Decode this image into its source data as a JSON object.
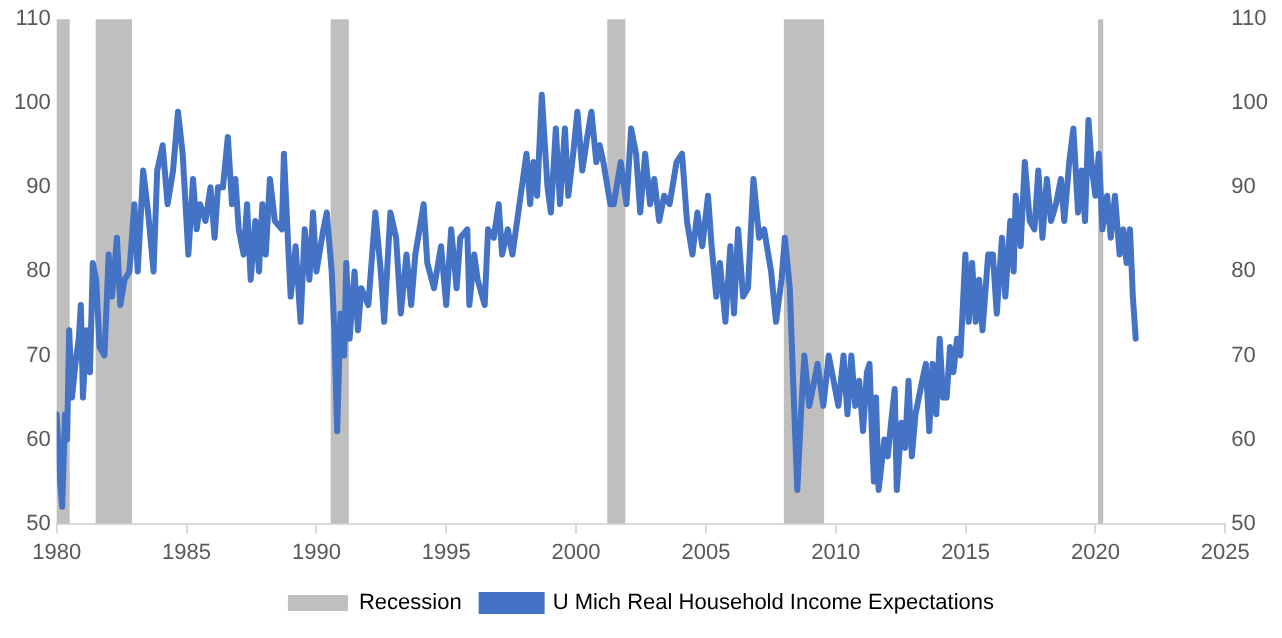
{
  "chart_data": {
    "type": "line",
    "legend": "bottom",
    "grid": false,
    "marker": "none",
    "line_style": "solid",
    "xlim": [
      1980,
      2025
    ],
    "xticks": [
      1980,
      1985,
      1990,
      1995,
      2000,
      2005,
      2010,
      2015,
      2020,
      2025
    ],
    "ylim": [
      50,
      110
    ],
    "yticks": [
      50,
      60,
      70,
      80,
      90,
      100,
      110
    ],
    "y2lim": [
      50,
      110
    ],
    "y2ticks": [
      50,
      60,
      70,
      80,
      90,
      100,
      110
    ],
    "bands": [
      {
        "axis": "x",
        "from": 1980.0,
        "to": 1980.5,
        "label": "Recession",
        "color": "#bfbfbf"
      },
      {
        "axis": "x",
        "from": 1981.5,
        "to": 1982.9,
        "color": "#bfbfbf"
      },
      {
        "axis": "x",
        "from": 1990.55,
        "to": 1991.25,
        "color": "#bfbfbf"
      },
      {
        "axis": "x",
        "from": 2001.2,
        "to": 2001.9,
        "color": "#bfbfbf"
      },
      {
        "axis": "x",
        "from": 2008.0,
        "to": 2009.55,
        "color": "#bfbfbf"
      },
      {
        "axis": "x",
        "from": 2020.1,
        "to": 2020.3,
        "color": "#bfbfbf"
      }
    ],
    "x": [
      1980.0,
      1980.13,
      1980.21,
      1980.32,
      1980.4,
      1980.48,
      1980.59,
      1980.72,
      1980.85,
      1980.93,
      1981.01,
      1981.15,
      1981.28,
      1981.39,
      1981.52,
      1981.65,
      1981.84,
      1982.0,
      1982.13,
      1982.32,
      1982.45,
      1982.61,
      1982.8,
      1982.99,
      1983.12,
      1983.33,
      1983.52,
      1983.73,
      1983.87,
      1984.08,
      1984.27,
      1984.48,
      1984.67,
      1984.85,
      1985.07,
      1985.25,
      1985.39,
      1985.52,
      1985.73,
      1985.92,
      1986.08,
      1986.21,
      1986.4,
      1986.59,
      1986.75,
      1986.88,
      1987.01,
      1987.2,
      1987.33,
      1987.47,
      1987.65,
      1987.79,
      1987.92,
      1988.05,
      1988.21,
      1988.4,
      1988.67,
      1988.75,
      1988.93,
      1989.01,
      1989.2,
      1989.39,
      1989.55,
      1989.73,
      1989.87,
      1990.0,
      1990.27,
      1990.4,
      1990.59,
      1990.69,
      1990.8,
      1990.93,
      1991.07,
      1991.15,
      1991.28,
      1991.47,
      1991.6,
      1991.73,
      1992.0,
      1992.27,
      1992.48,
      1992.61,
      1992.85,
      1993.07,
      1993.25,
      1993.47,
      1993.65,
      1993.81,
      1994.13,
      1994.27,
      1994.53,
      1994.8,
      1995.0,
      1995.19,
      1995.4,
      1995.54,
      1995.81,
      1995.89,
      1996.08,
      1996.21,
      1996.48,
      1996.61,
      1996.83,
      1997.02,
      1997.15,
      1997.37,
      1997.55,
      1997.82,
      1998.09,
      1998.23,
      1998.36,
      1998.5,
      1998.68,
      1998.9,
      1999.03,
      1999.22,
      1999.38,
      1999.57,
      1999.7,
      1999.89,
      2000.05,
      2000.24,
      2000.43,
      2000.59,
      2000.78,
      2000.91,
      2001.05,
      2001.32,
      2001.45,
      2001.72,
      2001.94,
      2002.12,
      2002.31,
      2002.47,
      2002.66,
      2002.85,
      2003.01,
      2003.2,
      2003.39,
      2003.6,
      2003.87,
      2004.08,
      2004.27,
      2004.48,
      2004.67,
      2004.86,
      2005.08,
      2005.22,
      2005.4,
      2005.54,
      2005.75,
      2005.94,
      2006.08,
      2006.24,
      2006.43,
      2006.62,
      2006.83,
      2007.05,
      2007.24,
      2007.51,
      2007.7,
      2007.91,
      2008.04,
      2008.23,
      2008.37,
      2008.52,
      2008.66,
      2008.79,
      2008.98,
      2009.11,
      2009.3,
      2009.52,
      2009.73,
      2010.1,
      2010.3,
      2010.45,
      2010.6,
      2010.75,
      2010.9,
      2011.05,
      2011.2,
      2011.3,
      2011.4,
      2011.47,
      2011.55,
      2011.65,
      2011.87,
      2012.0,
      2012.13,
      2012.27,
      2012.35,
      2012.53,
      2012.67,
      2012.8,
      2012.93,
      2013.07,
      2013.33,
      2013.47,
      2013.6,
      2013.73,
      2013.87,
      2014.0,
      2014.13,
      2014.27,
      2014.4,
      2014.53,
      2014.67,
      2014.8,
      2014.99,
      2015.12,
      2015.25,
      2015.39,
      2015.52,
      2015.65,
      2015.87,
      2016.05,
      2016.2,
      2016.4,
      2016.53,
      2016.72,
      2016.85,
      2016.93,
      2017.12,
      2017.28,
      2017.47,
      2017.65,
      2017.8,
      2017.96,
      2018.13,
      2018.29,
      2018.48,
      2018.67,
      2018.8,
      2018.99,
      2019.15,
      2019.33,
      2019.47,
      2019.6,
      2019.73,
      2019.87,
      2020.0,
      2020.13,
      2020.27,
      2020.45,
      2020.59,
      2020.75,
      2020.93,
      2021.07,
      2021.2,
      2021.33,
      2021.44,
      2021.55
    ],
    "series": [
      {
        "name": "U Mich Real Household Income Expectations",
        "color": "#4472c4",
        "values": [
          63,
          55,
          52,
          63,
          60,
          73,
          65,
          69,
          72,
          76,
          65,
          73,
          68,
          81,
          79,
          71,
          70,
          82,
          77,
          84,
          76,
          79,
          80,
          88,
          80,
          92,
          87,
          80,
          92,
          95,
          88,
          92,
          99,
          94,
          82,
          91,
          85,
          88,
          86,
          90,
          84,
          90,
          90,
          96,
          88,
          91,
          85,
          82,
          88,
          79,
          86,
          80,
          88,
          82,
          91,
          86,
          85,
          94,
          82,
          77,
          83,
          74,
          85,
          79,
          87,
          80,
          85,
          87,
          80,
          73,
          61,
          75,
          70,
          81,
          72,
          80,
          73,
          78,
          76,
          87,
          80,
          74,
          87,
          84,
          75,
          82,
          76,
          82,
          88,
          81,
          78,
          83,
          76,
          85,
          78,
          84,
          85,
          76,
          82,
          79,
          76,
          85,
          84,
          88,
          82,
          85,
          82,
          88,
          94,
          88,
          93,
          89,
          101,
          90,
          87,
          97,
          88,
          97,
          89,
          94,
          99,
          92,
          96,
          99,
          93,
          95,
          93,
          88,
          88,
          93,
          88,
          97,
          94,
          87,
          94,
          88,
          91,
          86,
          89,
          88,
          93,
          94,
          86,
          82,
          87,
          83,
          89,
          83,
          77,
          81,
          74,
          83,
          75,
          85,
          77,
          78,
          91,
          84,
          85,
          80,
          74,
          79,
          84,
          78,
          66,
          54,
          63,
          70,
          64,
          66,
          69,
          64,
          70,
          64,
          70,
          63,
          70,
          64,
          67,
          61,
          68,
          69,
          60,
          55,
          65,
          54,
          60,
          58,
          62,
          66,
          54,
          62,
          59,
          67,
          58,
          63,
          67,
          69,
          61,
          69,
          63,
          72,
          65,
          65,
          71,
          68,
          72,
          70,
          82,
          74,
          81,
          74,
          79,
          73,
          82,
          82,
          75,
          84,
          77,
          86,
          80,
          89,
          83,
          93,
          86,
          85,
          92,
          84,
          91,
          86,
          88,
          91,
          86,
          93,
          97,
          87,
          92,
          86,
          98,
          92,
          89,
          94,
          85,
          89,
          84,
          89,
          82,
          85,
          81,
          85,
          77,
          72
        ]
      }
    ]
  }
}
